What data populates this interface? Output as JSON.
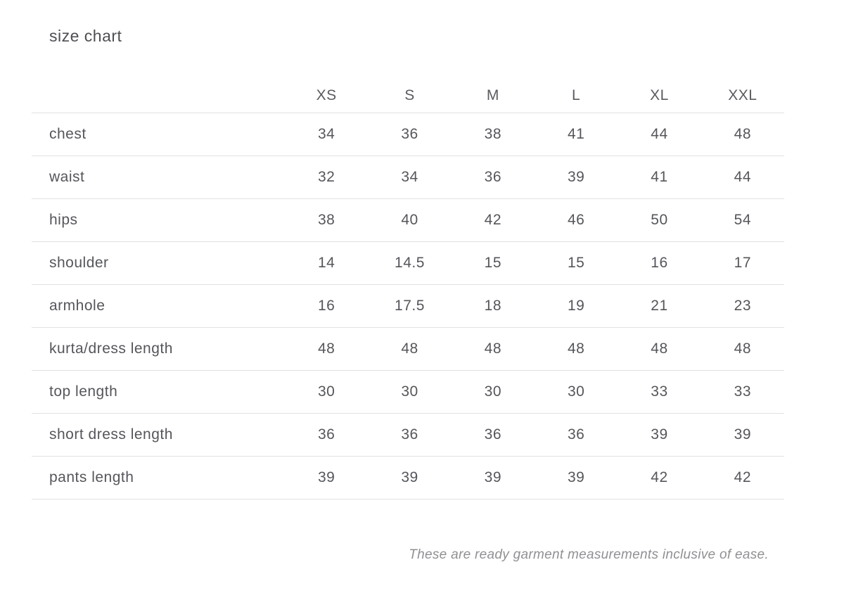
{
  "page": {
    "title": "size chart",
    "footnote": "These are ready garment measurements inclusive of ease."
  },
  "table": {
    "columns": [
      "XS",
      "S",
      "M",
      "L",
      "XL",
      "XXL"
    ],
    "rows": [
      {
        "label": "chest",
        "values": [
          "34",
          "36",
          "38",
          "41",
          "44",
          "48"
        ]
      },
      {
        "label": "waist",
        "values": [
          "32",
          "34",
          "36",
          "39",
          "41",
          "44"
        ]
      },
      {
        "label": "hips",
        "values": [
          "38",
          "40",
          "42",
          "46",
          "50",
          "54"
        ]
      },
      {
        "label": "shoulder",
        "values": [
          "14",
          "14.5",
          "15",
          "15",
          "16",
          "17"
        ]
      },
      {
        "label": "armhole",
        "values": [
          "16",
          "17.5",
          "18",
          "19",
          "21",
          "23"
        ]
      },
      {
        "label": "kurta/dress length",
        "values": [
          "48",
          "48",
          "48",
          "48",
          "48",
          "48"
        ]
      },
      {
        "label": "top length",
        "values": [
          "30",
          "30",
          "30",
          "30",
          "33",
          "33"
        ]
      },
      {
        "label": "short dress length",
        "values": [
          "36",
          "36",
          "36",
          "36",
          "39",
          "39"
        ]
      },
      {
        "label": "pants length",
        "values": [
          "39",
          "39",
          "39",
          "39",
          "42",
          "42"
        ]
      }
    ]
  },
  "colors": {
    "background": "#ffffff",
    "text": "#55565b",
    "label_text": "#5d5e63",
    "muted_text": "#8f9094",
    "divider": "#e1e1e1"
  }
}
